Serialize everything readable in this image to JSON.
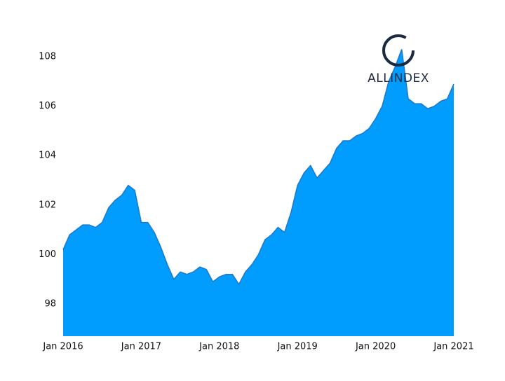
{
  "chart_data": {
    "type": "area",
    "logo_text": "ALLINDEX",
    "color": "#009dff",
    "line_color": "#1f78c8",
    "grid": false,
    "x": [
      "2016-01",
      "2016-02",
      "2016-03",
      "2016-04",
      "2016-05",
      "2016-06",
      "2016-07",
      "2016-08",
      "2016-09",
      "2016-10",
      "2016-11",
      "2016-12",
      "2017-01",
      "2017-02",
      "2017-03",
      "2017-04",
      "2017-05",
      "2017-06",
      "2017-07",
      "2017-08",
      "2017-09",
      "2017-10",
      "2017-11",
      "2017-12",
      "2018-01",
      "2018-02",
      "2018-03",
      "2018-04",
      "2018-05",
      "2018-06",
      "2018-07",
      "2018-08",
      "2018-09",
      "2018-10",
      "2018-11",
      "2018-12",
      "2019-01",
      "2019-02",
      "2019-03",
      "2019-04",
      "2019-05",
      "2019-06",
      "2019-07",
      "2019-08",
      "2019-09",
      "2019-10",
      "2019-11",
      "2019-12",
      "2020-01",
      "2020-02",
      "2020-03",
      "2020-04",
      "2020-05",
      "2020-06",
      "2020-07",
      "2020-08",
      "2020-09",
      "2020-10",
      "2020-11",
      "2020-12",
      "2021-01"
    ],
    "values": [
      100.2,
      100.8,
      101.0,
      101.2,
      101.2,
      101.1,
      101.3,
      101.9,
      102.2,
      102.4,
      102.8,
      102.6,
      101.3,
      101.3,
      100.9,
      100.3,
      99.6,
      99.0,
      99.3,
      99.2,
      99.3,
      99.5,
      99.4,
      98.9,
      99.1,
      99.2,
      99.2,
      98.8,
      99.3,
      99.6,
      100.0,
      100.6,
      100.8,
      101.1,
      100.9,
      101.7,
      102.8,
      103.3,
      103.6,
      103.1,
      103.4,
      103.7,
      104.3,
      104.6,
      104.6,
      104.8,
      104.9,
      105.1,
      105.5,
      106.0,
      107.0,
      107.6,
      108.3,
      106.3,
      106.1,
      106.1,
      105.9,
      106.0,
      106.2,
      106.3,
      106.9
    ],
    "xlim": [
      "2016-01",
      "2021-01"
    ],
    "xticks": [
      {
        "value": "2016-01",
        "label": "Jan 2016"
      },
      {
        "value": "2017-01",
        "label": "Jan 2017"
      },
      {
        "value": "2018-01",
        "label": "Jan 2018"
      },
      {
        "value": "2019-01",
        "label": "Jan 2019"
      },
      {
        "value": "2020-01",
        "label": "Jan 2020"
      },
      {
        "value": "2021-01",
        "label": "Jan 2021"
      }
    ],
    "ylim": [
      96.7,
      109
    ],
    "yticks": [
      98,
      100,
      102,
      104,
      106,
      108
    ]
  }
}
